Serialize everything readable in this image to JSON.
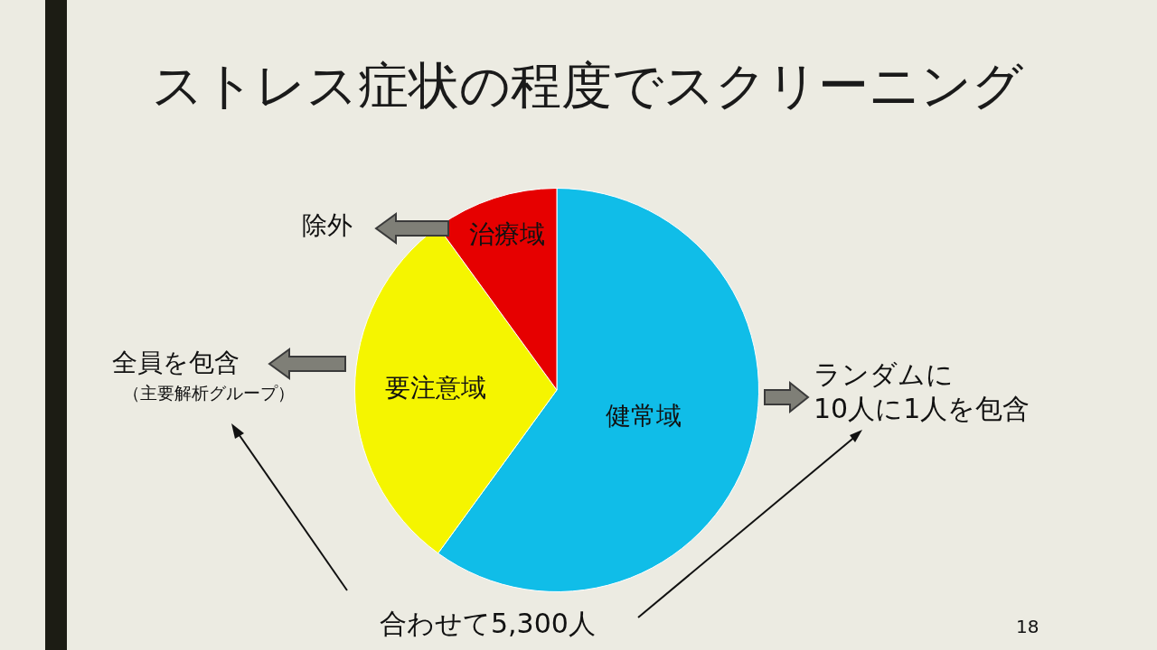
{
  "chart_data": {
    "type": "pie",
    "title": "ストレス症状の程度でスクリーニング",
    "categories": [
      "健常域",
      "要注意域",
      "治療域"
    ],
    "values": [
      60,
      30,
      10
    ],
    "colors": [
      "#10bde8",
      "#f5f500",
      "#e60000"
    ],
    "data_labels": false,
    "annotations": [
      "除外",
      "全員を包含",
      "（主要解析グループ）",
      "ランダムに\n10人に1人を包含",
      "合わせて5,300人",
      "18"
    ]
  }
}
